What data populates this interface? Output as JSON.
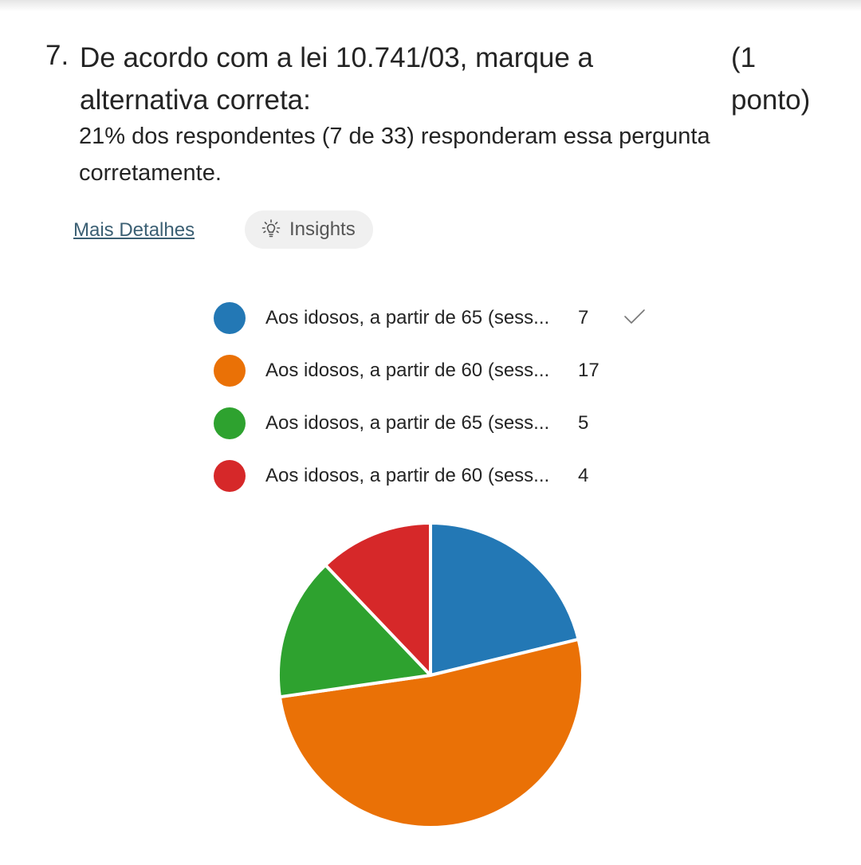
{
  "question": {
    "number": "7.",
    "title_line1": "De acordo com a lei 10.741/03, marque a",
    "title_line2": "alternativa correta:",
    "points_line1": "(1",
    "points_line2": "ponto)",
    "summary_line1": "21% dos respondentes (7 de 33) responderam essa pergunta",
    "summary_line2": "corretamente."
  },
  "actions": {
    "more_details": "Mais Detalhes",
    "insights": "Insights",
    "insights_icon": "lightbulb-icon"
  },
  "legend": [
    {
      "label": "Aos idosos, a partir de 65 (sess...",
      "count": "7",
      "color": "#2378b5",
      "correct": true
    },
    {
      "label": "Aos idosos, a partir de 60 (sess...",
      "count": "17",
      "color": "#ea7106",
      "correct": false
    },
    {
      "label": "Aos idosos, a partir de 65 (sess...",
      "count": "5",
      "color": "#2ea22f",
      "correct": false
    },
    {
      "label": "Aos idosos, a partir de 60 (sess...",
      "count": "4",
      "color": "#d62829",
      "correct": false
    }
  ],
  "chart_data": {
    "type": "pie",
    "categories": [
      "Aos idosos, a partir de 65 (sess...",
      "Aos idosos, a partir de 60 (sess...",
      "Aos idosos, a partir de 65 (sess...",
      "Aos idosos, a partir de 60 (sess..."
    ],
    "values": [
      7,
      17,
      5,
      4
    ],
    "colors": [
      "#2378b5",
      "#ea7106",
      "#2ea22f",
      "#d62829"
    ],
    "legend": "top",
    "title": ""
  }
}
